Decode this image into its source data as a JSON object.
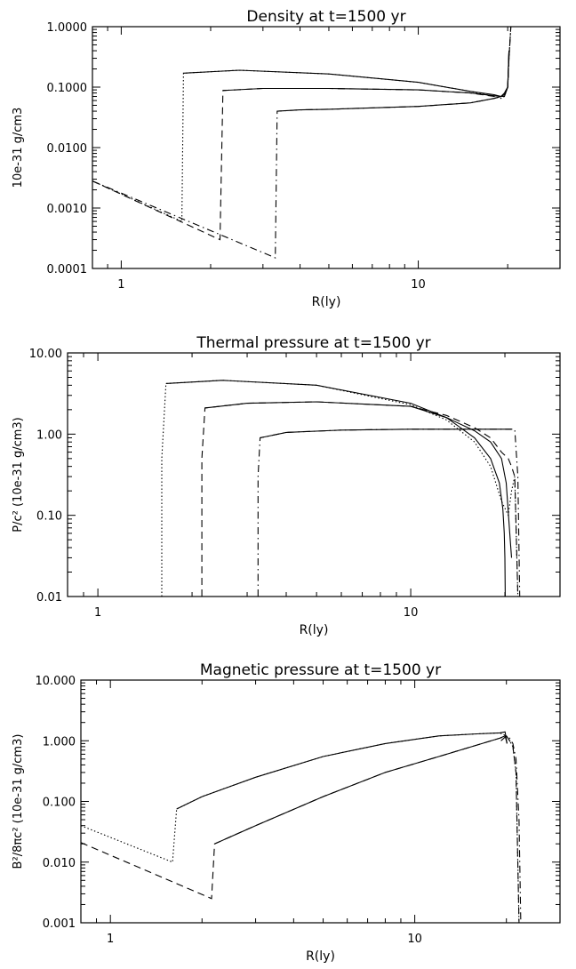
{
  "chart_data": [
    {
      "type": "line",
      "title": "Density at t=1500 yr",
      "xlabel": "R(ly)",
      "ylabel": "10e-31 g/cm3",
      "xscale": "log",
      "yscale": "log",
      "xlim": [
        0.8,
        30
      ],
      "ylim": [
        0.0001,
        1
      ],
      "xticks": [
        {
          "v": 1,
          "label": "1"
        },
        {
          "v": 10,
          "label": "10"
        }
      ],
      "yticks": [
        {
          "v": 1,
          "label": "1.0000"
        },
        {
          "v": 0.1,
          "label": "0.1000"
        },
        {
          "v": 0.01,
          "label": "0.0100"
        },
        {
          "v": 0.001,
          "label": "0.0010"
        },
        {
          "v": 0.0001,
          "label": "0.0001"
        }
      ],
      "series": [
        {
          "style": "dotted",
          "x": [
            0.8,
            1.6,
            1.6,
            1.62,
            2.5,
            5,
            10,
            15,
            18,
            19,
            19.5,
            20,
            20.2,
            20.5
          ],
          "y": [
            0.0028,
            0.0006,
            0.0006,
            0.17,
            0.19,
            0.165,
            0.12,
            0.085,
            0.07,
            0.065,
            0.07,
            0.1,
            0.3,
            1
          ]
        },
        {
          "style": "dashed",
          "x": [
            0.8,
            2.15,
            2.15,
            2.2,
            3,
            5,
            10,
            15,
            18,
            19,
            19.5,
            20,
            20.2,
            20.5
          ],
          "y": [
            0.0028,
            0.0003,
            0.0003,
            0.088,
            0.095,
            0.095,
            0.09,
            0.08,
            0.07,
            0.07,
            0.075,
            0.1,
            0.3,
            1
          ]
        },
        {
          "style": "dashdot",
          "x": [
            0.8,
            3.3,
            3.3,
            3.35,
            4,
            5,
            10,
            15,
            18,
            19,
            19.5,
            20,
            20.2,
            20.5
          ],
          "y": [
            0.0028,
            0.00015,
            0.00015,
            0.04,
            0.042,
            0.043,
            0.048,
            0.055,
            0.065,
            0.07,
            0.08,
            0.1,
            0.3,
            1
          ]
        },
        {
          "style": "solid",
          "x": [
            1.62,
            2.5,
            5,
            10,
            15,
            18,
            19,
            19.5,
            20,
            20.2
          ],
          "y": [
            0.17,
            0.19,
            0.165,
            0.12,
            0.085,
            0.075,
            0.07,
            0.07,
            0.1,
            0.4
          ]
        },
        {
          "style": "solid",
          "x": [
            2.2,
            3,
            5,
            10,
            15,
            18,
            19,
            19.5,
            20,
            20.2
          ],
          "y": [
            0.088,
            0.095,
            0.095,
            0.09,
            0.08,
            0.072,
            0.07,
            0.075,
            0.1,
            0.4
          ]
        },
        {
          "style": "solid",
          "x": [
            3.35,
            4,
            5,
            10,
            15,
            18,
            19,
            19.5,
            20,
            20.2
          ],
          "y": [
            0.04,
            0.042,
            0.043,
            0.048,
            0.055,
            0.065,
            0.07,
            0.08,
            0.1,
            0.4
          ]
        }
      ]
    },
    {
      "type": "line",
      "title": "Thermal pressure at t=1500 yr",
      "xlabel": "R(ly)",
      "ylabel": "P/c² (10e-31 g/cm3)",
      "xscale": "log",
      "yscale": "log",
      "xlim": [
        0.8,
        30
      ],
      "ylim": [
        0.01,
        10
      ],
      "xticks": [
        {
          "v": 1,
          "label": "1"
        },
        {
          "v": 10,
          "label": "10"
        }
      ],
      "yticks": [
        {
          "v": 10,
          "label": "10.00"
        },
        {
          "v": 1,
          "label": "1.00"
        },
        {
          "v": 0.1,
          "label": "0.10"
        },
        {
          "v": 0.01,
          "label": "0.01"
        }
      ],
      "series": [
        {
          "style": "dotted",
          "x": [
            1.6,
            1.6,
            1.65,
            2.5,
            5,
            10,
            13,
            16,
            18,
            19.5,
            20.5,
            21,
            21.5,
            22
          ],
          "y": [
            0.01,
            0.5,
            4.2,
            4.6,
            4,
            2.3,
            1.5,
            0.8,
            0.4,
            0.15,
            0.1,
            0.2,
            0.3,
            0.01
          ]
        },
        {
          "style": "dashed",
          "x": [
            2.15,
            2.15,
            2.2,
            3,
            5,
            10,
            13,
            16,
            18,
            19.5,
            20.5,
            21,
            21.5,
            22
          ],
          "y": [
            0.01,
            0.5,
            2.1,
            2.4,
            2.5,
            2.2,
            1.7,
            1.2,
            0.9,
            0.6,
            0.5,
            0.4,
            0.3,
            0.01
          ]
        },
        {
          "style": "dashdot",
          "x": [
            3.25,
            3.25,
            3.3,
            4,
            6,
            10,
            15,
            19,
            21.5,
            22,
            22.3
          ],
          "y": [
            0.01,
            0.3,
            0.9,
            1.05,
            1.12,
            1.15,
            1.15,
            1.15,
            1.15,
            0.3,
            0.01
          ]
        },
        {
          "style": "solid",
          "x": [
            1.65,
            2.5,
            5,
            10,
            13,
            16,
            18,
            19.2,
            19.7,
            19.9,
            20,
            20.05
          ],
          "y": [
            4.2,
            4.6,
            4,
            2.4,
            1.6,
            0.9,
            0.5,
            0.25,
            0.12,
            0.06,
            0.03,
            0.01
          ]
        },
        {
          "style": "solid",
          "x": [
            2.2,
            3,
            5,
            10,
            13,
            16,
            18,
            19.5,
            20.2,
            20.8,
            21
          ],
          "y": [
            2.1,
            2.4,
            2.5,
            2.2,
            1.6,
            1.1,
            0.8,
            0.5,
            0.25,
            0.05,
            0.03
          ]
        },
        {
          "style": "solid",
          "x": [
            3.3,
            4,
            6,
            10,
            15,
            19,
            21
          ],
          "y": [
            0.9,
            1.05,
            1.12,
            1.15,
            1.15,
            1.15,
            1.15
          ]
        }
      ]
    },
    {
      "type": "line",
      "title": "Magnetic pressure at t=1500 yr",
      "xlabel": "R(ly)",
      "ylabel": "B²/8πc² (10e-31 g/cm3)",
      "xscale": "log",
      "yscale": "log",
      "xlim": [
        0.8,
        30
      ],
      "ylim": [
        0.001,
        10
      ],
      "xticks": [
        {
          "v": 1,
          "label": "1"
        },
        {
          "v": 10,
          "label": "10"
        }
      ],
      "yticks": [
        {
          "v": 10,
          "label": "10.000"
        },
        {
          "v": 1,
          "label": "1.000"
        },
        {
          "v": 0.1,
          "label": "0.100"
        },
        {
          "v": 0.01,
          "label": "0.010"
        },
        {
          "v": 0.001,
          "label": "0.001"
        }
      ],
      "series": [
        {
          "style": "dotted",
          "x": [
            0.8,
            1.6,
            1.6,
            1.65,
            2,
            3,
            5,
            8,
            12,
            16,
            19,
            20,
            20.5,
            21,
            21.5,
            22
          ],
          "y": [
            0.04,
            0.01,
            0.01,
            0.075,
            0.12,
            0.25,
            0.55,
            0.9,
            1.2,
            1.3,
            1.35,
            1.2,
            1.0,
            0.8,
            0.3,
            0.001
          ]
        },
        {
          "style": "dashed",
          "x": [
            0.8,
            2.15,
            2.15,
            2.2,
            3,
            5,
            8,
            12,
            16,
            19,
            20,
            20.5,
            21,
            21.5,
            22
          ],
          "y": [
            0.021,
            0.0025,
            0.0025,
            0.02,
            0.04,
            0.12,
            0.3,
            0.55,
            0.85,
            1.1,
            1.2,
            1.0,
            0.8,
            0.3,
            0.001
          ]
        },
        {
          "style": "dashdot",
          "x": [
            19.2,
            20,
            20.5,
            21,
            21.5,
            22,
            22.3
          ],
          "y": [
            1.0,
            1.2,
            1.1,
            0.9,
            0.5,
            0.05,
            0.001
          ]
        },
        {
          "style": "solid",
          "x": [
            1.65,
            2,
            3,
            5,
            8,
            12,
            16,
            19,
            19.8,
            20.1
          ],
          "y": [
            0.075,
            0.12,
            0.25,
            0.55,
            0.9,
            1.2,
            1.3,
            1.35,
            1.4,
            0.9
          ]
        },
        {
          "style": "solid",
          "x": [
            2.2,
            3,
            5,
            8,
            12,
            16,
            19,
            19.8,
            20.1
          ],
          "y": [
            0.02,
            0.04,
            0.12,
            0.3,
            0.55,
            0.85,
            1.1,
            1.2,
            0.9
          ]
        }
      ]
    }
  ]
}
